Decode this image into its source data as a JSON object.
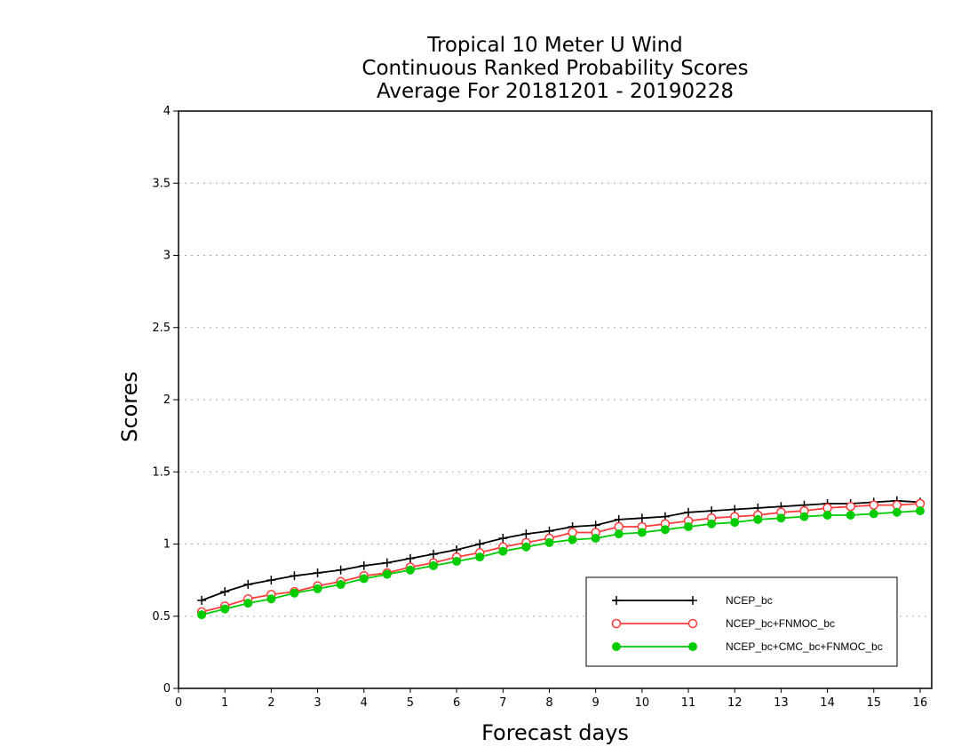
{
  "chart_data": {
    "type": "line",
    "title_lines": [
      "Tropical 10 Meter U Wind",
      "Continuous Ranked Probability Scores",
      "Average For 20181201 - 20190228"
    ],
    "xlabel": "Forecast days",
    "ylabel": "Scores",
    "xlim": [
      0,
      16.25
    ],
    "ylim": [
      0,
      4
    ],
    "x_ticks": [
      "0",
      "1",
      "2",
      "3",
      "4",
      "5",
      "6",
      "7",
      "8",
      "9",
      "10",
      "11",
      "12",
      "13",
      "14",
      "15",
      "16"
    ],
    "y_ticks": [
      "0",
      "0.5",
      "1",
      "1.5",
      "2",
      "2.5",
      "3",
      "3.5",
      "4"
    ],
    "grid": "horizontal dotted",
    "legend_position": "bottom-right",
    "x": [
      0.5,
      1,
      1.5,
      2,
      2.5,
      3,
      3.5,
      4,
      4.5,
      5,
      5.5,
      6,
      6.5,
      7,
      7.5,
      8,
      8.5,
      9,
      9.5,
      10,
      10.5,
      11,
      11.5,
      12,
      12.5,
      13,
      13.5,
      14,
      14.5,
      15,
      15.5,
      16
    ],
    "series": [
      {
        "name": "NCEP_bc",
        "color": "#000000",
        "marker": "plus",
        "values": [
          0.61,
          0.67,
          0.72,
          0.75,
          0.78,
          0.8,
          0.82,
          0.85,
          0.87,
          0.9,
          0.93,
          0.96,
          1.0,
          1.04,
          1.07,
          1.09,
          1.12,
          1.13,
          1.17,
          1.18,
          1.19,
          1.22,
          1.23,
          1.24,
          1.25,
          1.26,
          1.27,
          1.28,
          1.28,
          1.29,
          1.3,
          1.29
        ]
      },
      {
        "name": "NCEP_bc+FNMOC_bc",
        "color": "#ff3b3b",
        "marker": "open-circle",
        "values": [
          0.53,
          0.57,
          0.62,
          0.65,
          0.67,
          0.71,
          0.74,
          0.78,
          0.8,
          0.84,
          0.87,
          0.91,
          0.94,
          0.98,
          1.01,
          1.04,
          1.08,
          1.08,
          1.12,
          1.12,
          1.14,
          1.16,
          1.18,
          1.19,
          1.2,
          1.22,
          1.23,
          1.25,
          1.26,
          1.27,
          1.27,
          1.28
        ]
      },
      {
        "name": "NCEP_bc+CMC_bc+FNMOC_bc",
        "color": "#00cc00",
        "marker": "filled-circle",
        "values": [
          0.51,
          0.55,
          0.59,
          0.62,
          0.66,
          0.69,
          0.72,
          0.76,
          0.79,
          0.82,
          0.85,
          0.88,
          0.91,
          0.95,
          0.98,
          1.01,
          1.03,
          1.04,
          1.07,
          1.08,
          1.1,
          1.12,
          1.14,
          1.15,
          1.17,
          1.18,
          1.19,
          1.2,
          1.2,
          1.21,
          1.22,
          1.23
        ]
      }
    ]
  }
}
